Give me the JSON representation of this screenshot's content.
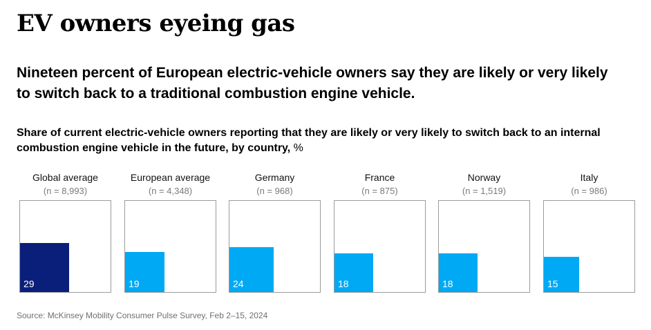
{
  "title": "EV owners eyeing gas",
  "headline": "Nineteen percent of European electric-vehicle owners say they are likely or very likely to switch back to a traditional combustion engine vehicle.",
  "subtitle": {
    "bold": "Share of current electric-vehicle owners reporting that they are likely or very likely to switch back to an internal combustion engine vehicle in the future, by country,",
    "unit": "%"
  },
  "source": "Source: McKinsey Mobility Consumer Pulse Survey, Feb 2–15, 2024",
  "colors": {
    "highlight": "#0a1f7a",
    "bar": "#00a9f4",
    "border": "#9a9a9a"
  },
  "chart_data": {
    "type": "bar",
    "categories": [
      "Global average",
      "European average",
      "Germany",
      "France",
      "Norway",
      "Italy"
    ],
    "sample_sizes": [
      "(n = 8,993)",
      "(n = 4,348)",
      "(n = 968)",
      "(n = 875)",
      "(n = 1,519)",
      "(n = 986)"
    ],
    "values": [
      29,
      19,
      24,
      18,
      18,
      15
    ],
    "highlighted_index": 0,
    "unit": "%",
    "ylim": [
      0,
      100
    ]
  }
}
